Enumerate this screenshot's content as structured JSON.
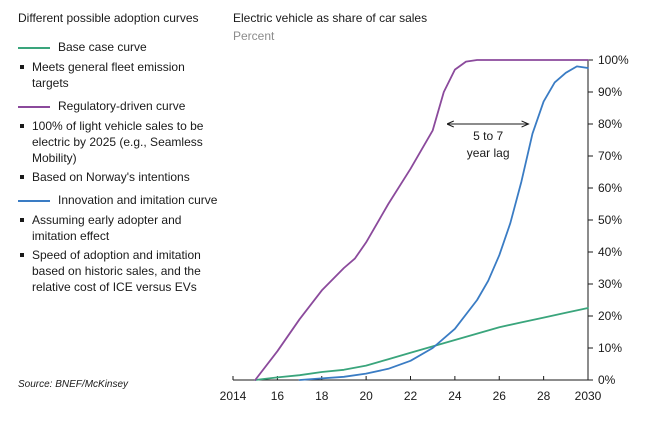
{
  "panel": {
    "title": "Different possible adoption curves",
    "curves": [
      {
        "name": "Base case curve",
        "color": "#3aa57c",
        "bullets": [
          "Meets general fleet emission targets"
        ]
      },
      {
        "name": "Regulatory-driven curve",
        "color": "#8b4a9c",
        "bullets": [
          "100% of light vehicle sales to be electric by 2025 (e.g., Seamless Mobility)",
          "Based on Norway's intentions"
        ]
      },
      {
        "name": "Innovation and imitation curve",
        "color": "#3a7cc4",
        "bullets": [
          "Assuming early adopter and imitation effect",
          "Speed of adoption and imitation based on historic sales, and the relative cost of ICE versus EVs"
        ]
      }
    ],
    "source": "Source: BNEF/McKinsey"
  },
  "chart_data": {
    "type": "line",
    "title": "Electric vehicle as share of car sales",
    "subtitle": "Percent",
    "xlim": [
      2014,
      2030
    ],
    "ylim": [
      0,
      100
    ],
    "x_ticks": [
      {
        "value": 2014,
        "label": "2014"
      },
      {
        "value": 2016,
        "label": "16"
      },
      {
        "value": 2018,
        "label": "18"
      },
      {
        "value": 2020,
        "label": "20"
      },
      {
        "value": 2022,
        "label": "22"
      },
      {
        "value": 2024,
        "label": "24"
      },
      {
        "value": 2026,
        "label": "26"
      },
      {
        "value": 2028,
        "label": "28"
      },
      {
        "value": 2030,
        "label": "2030"
      }
    ],
    "y_ticks": [
      {
        "value": 0,
        "label": "0%"
      },
      {
        "value": 10,
        "label": "10%"
      },
      {
        "value": 20,
        "label": "20%"
      },
      {
        "value": 30,
        "label": "30%"
      },
      {
        "value": 40,
        "label": "40%"
      },
      {
        "value": 50,
        "label": "50%"
      },
      {
        "value": 60,
        "label": "60%"
      },
      {
        "value": 70,
        "label": "70%"
      },
      {
        "value": 80,
        "label": "80%"
      },
      {
        "value": 90,
        "label": "90%"
      },
      {
        "value": 100,
        "label": "100%"
      }
    ],
    "series": [
      {
        "name": "Base case curve",
        "color": "#3aa57c",
        "x": [
          2015,
          2016,
          2017,
          2018,
          2019,
          2020,
          2021,
          2022,
          2023,
          2024,
          2025,
          2026,
          2027,
          2028,
          2029,
          2030
        ],
        "y": [
          0,
          0.8,
          1.5,
          2.5,
          3.2,
          4.5,
          6.5,
          8.5,
          10.5,
          12.5,
          14.5,
          16.5,
          18,
          19.5,
          21,
          22.5
        ]
      },
      {
        "name": "Regulatory-driven curve",
        "color": "#8b4a9c",
        "x": [
          2015,
          2016,
          2017,
          2018,
          2019,
          2019.5,
          2020,
          2021,
          2022,
          2023,
          2023.5,
          2024,
          2024.5,
          2025,
          2026,
          2030
        ],
        "y": [
          0,
          9,
          19,
          28,
          35,
          38,
          43,
          55,
          66,
          78,
          90,
          97,
          99.5,
          100,
          100,
          100
        ]
      },
      {
        "name": "Innovation and imitation curve",
        "color": "#3a7cc4",
        "x": [
          2017,
          2018,
          2019,
          2020,
          2021,
          2022,
          2023,
          2024,
          2025,
          2025.5,
          2026,
          2026.5,
          2027,
          2027.5,
          2028,
          2028.5,
          2029,
          2029.5,
          2030
        ],
        "y": [
          0,
          0.5,
          1,
          2,
          3.5,
          6,
          10,
          16,
          25,
          31,
          39,
          49,
          62,
          77,
          87,
          93,
          96,
          98,
          97.5
        ]
      }
    ],
    "annotation": {
      "lines": [
        "5 to 7",
        "year lag"
      ],
      "x_from": 2023.5,
      "x_to": 2027.5,
      "y": 80
    }
  }
}
